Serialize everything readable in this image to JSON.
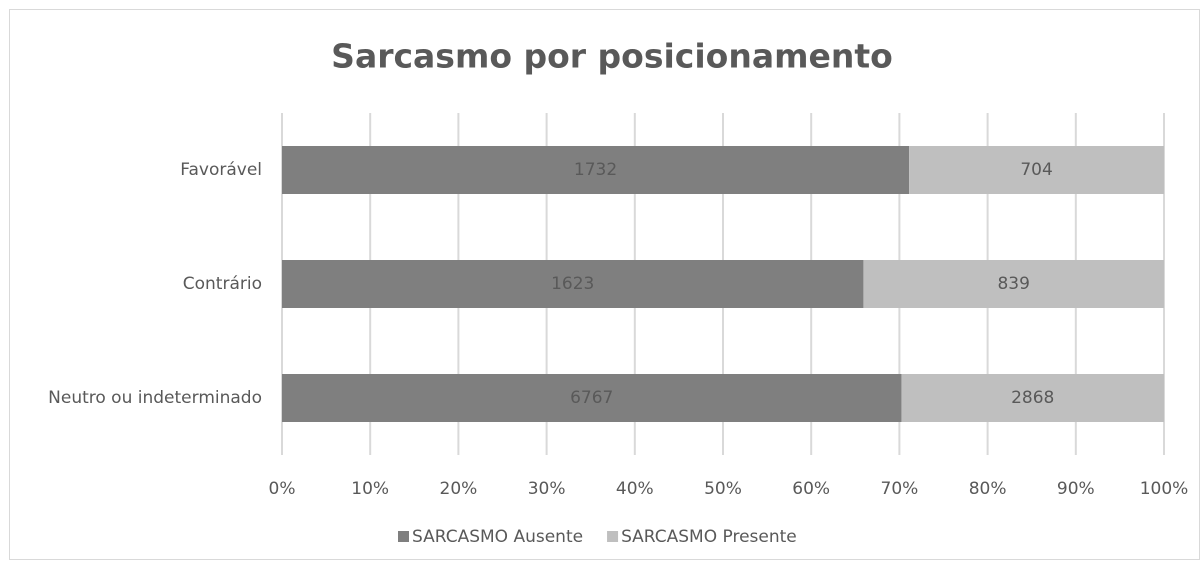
{
  "chart_data": {
    "type": "bar",
    "orientation": "horizontal",
    "stacked": "percent",
    "title": "Sarcasmo por posicionamento",
    "categories": [
      "Favorável",
      "Contrário",
      "Neutro ou indeterminado"
    ],
    "series": [
      {
        "name": "SARCASMO Ausente",
        "color": "#7f7f7f",
        "values": [
          1732,
          1623,
          6767
        ]
      },
      {
        "name": "SARCASMO Presente",
        "color": "#bfbfbf",
        "values": [
          704,
          839,
          2868
        ]
      }
    ],
    "xlim": [
      0,
      100
    ],
    "xticks": [
      {
        "value": 0,
        "label": "0%"
      },
      {
        "value": 10,
        "label": "10%"
      },
      {
        "value": 20,
        "label": "20%"
      },
      {
        "value": 30,
        "label": "30%"
      },
      {
        "value": 40,
        "label": "40%"
      },
      {
        "value": 50,
        "label": "50%"
      },
      {
        "value": 60,
        "label": "60%"
      },
      {
        "value": 70,
        "label": "70%"
      },
      {
        "value": 80,
        "label": "80%"
      },
      {
        "value": 90,
        "label": "90%"
      },
      {
        "value": 100,
        "label": "100%"
      }
    ],
    "grid": true,
    "legend": "bottom"
  }
}
